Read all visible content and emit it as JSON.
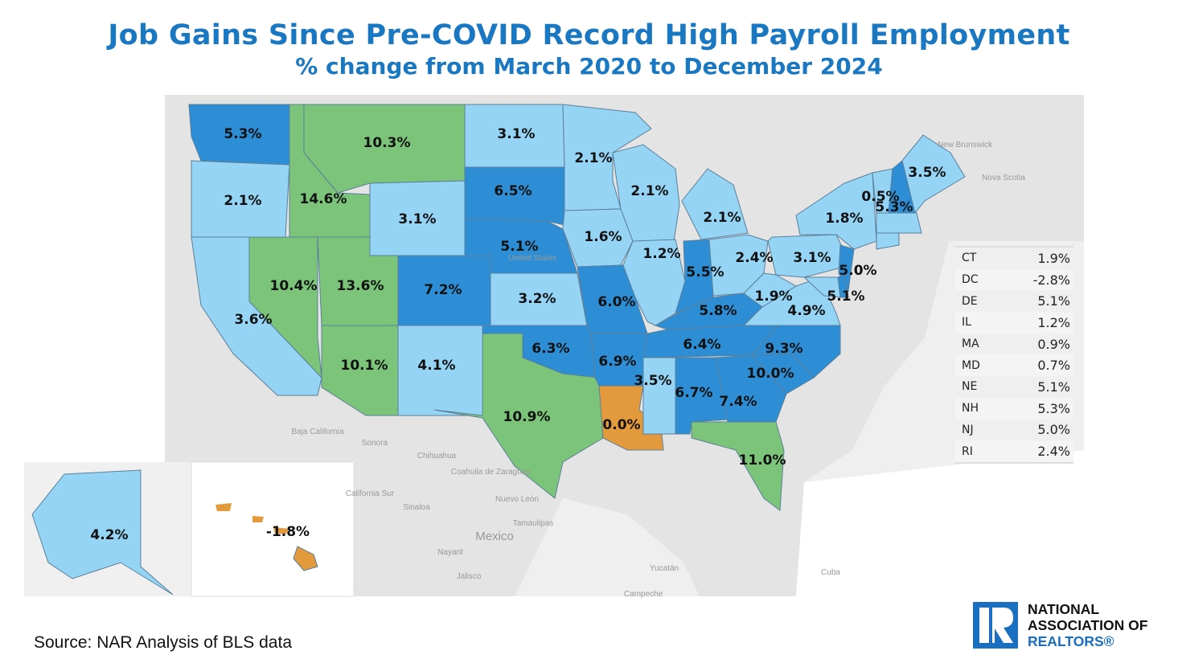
{
  "header": {
    "title": "Job Gains Since Pre-COVID Record High Payroll Employment",
    "subtitle": "% change from March 2020 to December 2024"
  },
  "colors": {
    "negative_or_zero": "#e39a3c",
    "low": "#96d4f6",
    "mid": "#2d8ed6",
    "high": "#7cc47a",
    "title": "#1a78c2",
    "background_land": "#e6e6e6"
  },
  "map": {
    "type": "choropleth",
    "states": [
      {
        "code": "WA",
        "value": "5.3%",
        "cat": "mid"
      },
      {
        "code": "OR",
        "value": "2.1%",
        "cat": "low"
      },
      {
        "code": "CA",
        "value": "3.6%",
        "cat": "low"
      },
      {
        "code": "NV",
        "value": "10.4%",
        "cat": "high"
      },
      {
        "code": "ID",
        "value": "14.6%",
        "cat": "high"
      },
      {
        "code": "MT",
        "value": "10.3%",
        "cat": "high"
      },
      {
        "code": "WY",
        "value": "3.1%",
        "cat": "low"
      },
      {
        "code": "UT",
        "value": "13.6%",
        "cat": "high"
      },
      {
        "code": "AZ",
        "value": "10.1%",
        "cat": "high"
      },
      {
        "code": "CO",
        "value": "7.2%",
        "cat": "mid"
      },
      {
        "code": "NM",
        "value": "4.1%",
        "cat": "low"
      },
      {
        "code": "ND",
        "value": "3.1%",
        "cat": "low"
      },
      {
        "code": "SD",
        "value": "6.5%",
        "cat": "mid"
      },
      {
        "code": "NE",
        "value": "5.1%",
        "cat": "mid"
      },
      {
        "code": "KS",
        "value": "3.2%",
        "cat": "low"
      },
      {
        "code": "OK",
        "value": "6.3%",
        "cat": "mid"
      },
      {
        "code": "TX",
        "value": "10.9%",
        "cat": "high"
      },
      {
        "code": "MN",
        "value": "2.1%",
        "cat": "low"
      },
      {
        "code": "IA",
        "value": "1.6%",
        "cat": "low"
      },
      {
        "code": "MO",
        "value": "6.0%",
        "cat": "mid"
      },
      {
        "code": "AR",
        "value": "6.9%",
        "cat": "mid"
      },
      {
        "code": "LA",
        "value": "0.0%",
        "cat": "negative_or_zero"
      },
      {
        "code": "WI",
        "value": "2.1%",
        "cat": "low"
      },
      {
        "code": "IL",
        "value": "1.2%",
        "cat": "low"
      },
      {
        "code": "MI",
        "value": "2.1%",
        "cat": "low"
      },
      {
        "code": "IN",
        "value": "5.5%",
        "cat": "mid"
      },
      {
        "code": "OH",
        "value": "2.4%",
        "cat": "low"
      },
      {
        "code": "KY",
        "value": "5.8%",
        "cat": "mid"
      },
      {
        "code": "TN",
        "value": "6.4%",
        "cat": "mid"
      },
      {
        "code": "MS",
        "value": "3.5%",
        "cat": "low"
      },
      {
        "code": "AL",
        "value": "6.7%",
        "cat": "mid"
      },
      {
        "code": "GA",
        "value": "7.4%",
        "cat": "mid"
      },
      {
        "code": "FL",
        "value": "11.0%",
        "cat": "high"
      },
      {
        "code": "SC",
        "value": "10.0%",
        "cat": "mid"
      },
      {
        "code": "NC",
        "value": "9.3%",
        "cat": "mid"
      },
      {
        "code": "VA",
        "value": "4.9%",
        "cat": "low"
      },
      {
        "code": "WV",
        "value": "1.9%",
        "cat": "low"
      },
      {
        "code": "PA",
        "value": "3.1%",
        "cat": "low"
      },
      {
        "code": "NY",
        "value": "1.8%",
        "cat": "low"
      },
      {
        "code": "NJ",
        "value": "5.0%",
        "cat": "mid"
      },
      {
        "code": "DE",
        "value": "5.1%",
        "cat": "mid"
      },
      {
        "code": "MD",
        "value": "",
        "cat": "low"
      },
      {
        "code": "VT",
        "value": "0.5%",
        "cat": "low"
      },
      {
        "code": "NH",
        "value": "5.3%",
        "cat": "mid"
      },
      {
        "code": "ME",
        "value": "3.5%",
        "cat": "low"
      },
      {
        "code": "MA",
        "value": "",
        "cat": "low"
      },
      {
        "code": "CT",
        "value": "",
        "cat": "low"
      },
      {
        "code": "AK",
        "value": "4.2%",
        "cat": "low"
      },
      {
        "code": "HI",
        "value": "-1.8%",
        "cat": "negative_or_zero"
      }
    ],
    "place_labels": [
      "New Brunswick",
      "Nova Scotia",
      "Baja California",
      "Sonora",
      "Chihuahua",
      "Coahuila de Zaragoza",
      "Nuevo León",
      "Tamaulipas",
      "Sinaloa",
      "Mexico",
      "Nayarit",
      "Jalisco",
      "Yucatán",
      "Cuba",
      "Campeche",
      "California Sur",
      "United States"
    ]
  },
  "table": [
    {
      "code": "CT",
      "value": "1.9%"
    },
    {
      "code": "DC",
      "value": "-2.8%"
    },
    {
      "code": "DE",
      "value": "5.1%"
    },
    {
      "code": "IL",
      "value": "1.2%"
    },
    {
      "code": "MA",
      "value": "0.9%"
    },
    {
      "code": "MD",
      "value": "0.7%"
    },
    {
      "code": "NE",
      "value": "5.1%"
    },
    {
      "code": "NH",
      "value": "5.3%"
    },
    {
      "code": "NJ",
      "value": "5.0%"
    },
    {
      "code": "RI",
      "value": "2.4%"
    }
  ],
  "footer": {
    "source": "Source: NAR Analysis of BLS data",
    "logo": {
      "line1": "NATIONAL",
      "line2": "ASSOCIATION OF",
      "line3": "REALTORS®"
    }
  }
}
